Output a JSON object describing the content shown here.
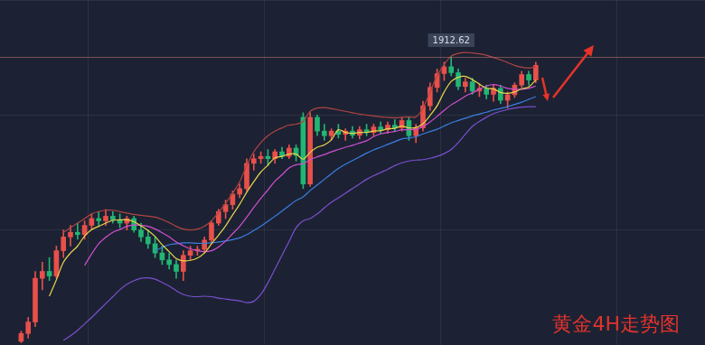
{
  "chart_data": {
    "type": "candlestick",
    "title": "黄金4H走势图",
    "x": [
      3,
      4,
      5,
      6,
      7,
      8,
      9,
      10,
      11,
      12,
      13,
      14,
      15,
      16,
      17,
      18,
      19,
      20,
      21,
      22,
      23,
      24,
      25,
      26,
      27,
      28,
      29,
      30,
      31,
      32,
      33,
      34,
      35,
      36,
      37,
      38,
      39,
      40,
      41,
      42,
      43,
      44,
      45,
      46,
      47,
      48,
      49,
      50,
      51,
      52,
      53,
      54,
      55,
      56,
      57,
      58,
      59,
      60,
      61,
      62,
      63,
      64,
      65,
      66,
      67,
      68,
      69,
      70,
      71,
      72,
      73,
      74,
      75,
      76
    ],
    "xlim": [
      0,
      100
    ],
    "xticks": [
      0,
      25,
      50,
      75,
      100
    ],
    "ylim": [
      1850,
      1925
    ],
    "yticks": [
      1850,
      1875,
      1900,
      1925
    ],
    "grid": true,
    "tick_labels": false,
    "open": [
      1850.8,
      1852.5,
      1855,
      1864.5,
      1866,
      1865,
      1870.5,
      1873.5,
      1874.5,
      1874,
      1876,
      1877.5,
      1877,
      1878,
      1877.2,
      1876.5,
      1877.5,
      1875,
      1873.5,
      1872,
      1870,
      1868.5,
      1867.5,
      1866,
      1869.5,
      1870.5,
      1870.8,
      1872.8,
      1876.5,
      1879,
      1880.5,
      1882.8,
      1884,
      1889.5,
      1890.5,
      1891,
      1890.5,
      1892,
      1891,
      1892.8,
      1899.5,
      1885,
      1899.5,
      1896.5,
      1895.5,
      1896.5,
      1895.8,
      1896.5,
      1895.6,
      1896.8,
      1896.2,
      1897.4,
      1896.8,
      1897.8,
      1897.2,
      1898.8,
      1895.5,
      1897.2,
      1902,
      1906,
      1909,
      1910.5,
      1909.2,
      1906.2,
      1907.2,
      1905.2,
      1905.8,
      1904.5,
      1905.8,
      1903.2,
      1904.4,
      1906.5,
      1908.8,
      1907.6
    ],
    "high": [
      1853,
      1856,
      1866,
      1868,
      1869,
      1871.5,
      1875,
      1876,
      1876.5,
      1877,
      1878.5,
      1879,
      1879.5,
      1879,
      1878.5,
      1878,
      1878,
      1876.5,
      1875,
      1873.5,
      1871.5,
      1870,
      1868.5,
      1870.5,
      1871.5,
      1871.5,
      1873.5,
      1877,
      1879.5,
      1881.5,
      1883.5,
      1885,
      1890.5,
      1891.5,
      1892,
      1892.5,
      1892.5,
      1893,
      1893.5,
      1893.5,
      1900.5,
      1900.5,
      1900,
      1898,
      1897,
      1898,
      1897,
      1897.5,
      1897.5,
      1898,
      1898,
      1898.5,
      1898.5,
      1899,
      1899.5,
      1899.5,
      1898,
      1903,
      1907,
      1910,
      1911.5,
      1912.62,
      1910,
      1908,
      1908,
      1906.8,
      1906.5,
      1906.5,
      1906.5,
      1905,
      1907,
      1909.5,
      1909.5,
      1911.5
    ],
    "low": [
      1850.5,
      1851.5,
      1854,
      1862,
      1864,
      1864.5,
      1869,
      1871.5,
      1873,
      1873,
      1875,
      1876,
      1876,
      1876.5,
      1875.5,
      1875,
      1874.5,
      1872.5,
      1871,
      1869,
      1867.5,
      1866.5,
      1864.5,
      1864,
      1868.5,
      1869.5,
      1870,
      1872,
      1876,
      1877.5,
      1879.5,
      1882,
      1883.5,
      1888,
      1889.5,
      1889,
      1889.5,
      1890.5,
      1890.5,
      1890,
      1884,
      1884.5,
      1895.5,
      1894.5,
      1894.5,
      1895,
      1894.5,
      1895,
      1894.8,
      1895.5,
      1895.5,
      1896,
      1896,
      1896.5,
      1896.5,
      1894.5,
      1894,
      1896.5,
      1901,
      1905,
      1907.5,
      1908.5,
      1905.5,
      1905,
      1904.5,
      1904,
      1903.5,
      1903,
      1902.5,
      1901.5,
      1903.8,
      1906,
      1906.5,
      1907
    ],
    "close": [
      1852.5,
      1855,
      1864.5,
      1866,
      1865,
      1870.5,
      1873.5,
      1874.5,
      1874,
      1876,
      1877.5,
      1877,
      1878,
      1877.2,
      1876.5,
      1877.5,
      1875,
      1873.5,
      1872,
      1870,
      1868.5,
      1867.5,
      1866,
      1869.5,
      1870.5,
      1870.8,
      1872.8,
      1876.5,
      1879,
      1880.5,
      1882.8,
      1884,
      1889.5,
      1890.5,
      1891,
      1890.5,
      1892,
      1891,
      1892.8,
      1891.2,
      1885,
      1899.5,
      1896.5,
      1895.5,
      1896.5,
      1895.8,
      1896.5,
      1895.6,
      1896.8,
      1896.2,
      1897.4,
      1896.8,
      1897.8,
      1897.2,
      1898.8,
      1895.5,
      1897.2,
      1902,
      1906,
      1909,
      1910.5,
      1909.2,
      1906.2,
      1907.2,
      1905.2,
      1905.8,
      1904.5,
      1905.8,
      1903.2,
      1904.4,
      1906.5,
      1908.8,
      1907.6,
      1910.8
    ],
    "colors": [
      "#e8504a",
      "#e8504a",
      "#e8504a",
      "#e8504a",
      "#22b573",
      "#e8504a",
      "#e8504a",
      "#e8504a",
      "#22b573",
      "#e8504a",
      "#e8504a",
      "#22b573",
      "#e8504a",
      "#22b573",
      "#22b573",
      "#e8504a",
      "#22b573",
      "#22b573",
      "#22b573",
      "#22b573",
      "#22b573",
      "#22b573",
      "#22b573",
      "#e8504a",
      "#e8504a",
      "#e8504a",
      "#e8504a",
      "#e8504a",
      "#e8504a",
      "#e8504a",
      "#e8504a",
      "#e8504a",
      "#e8504a",
      "#e8504a",
      "#e8504a",
      "#22b573",
      "#e8504a",
      "#22b573",
      "#e8504a",
      "#22b573",
      "#22b573",
      "#e8504a",
      "#22b573",
      "#22b573",
      "#e8504a",
      "#22b573",
      "#e8504a",
      "#22b573",
      "#e8504a",
      "#22b573",
      "#e8504a",
      "#22b573",
      "#e8504a",
      "#22b573",
      "#e8504a",
      "#22b573",
      "#e8504a",
      "#e8504a",
      "#e8504a",
      "#e8504a",
      "#e8504a",
      "#22b573",
      "#22b573",
      "#e8504a",
      "#22b573",
      "#e8504a",
      "#22b573",
      "#e8504a",
      "#22b573",
      "#e8504a",
      "#e8504a",
      "#e8504a",
      "#22b573",
      "#e8504a"
    ],
    "series": [
      {
        "type": "line",
        "color": "#b04444",
        "values": [
          null,
          null,
          null,
          null,
          null,
          null,
          1874.5,
          1875.5,
          1876.5,
          1877.5,
          1878.5,
          1879.0,
          1879.3,
          1879.3,
          1879.0,
          1878.7,
          1878.4,
          1878.2,
          1878.0,
          1877.8,
          1877.3,
          1876.6,
          1875.8,
          1875.2,
          1875.0,
          1875.2,
          1875.8,
          1877.0,
          1878.8,
          1880.8,
          1883.0,
          1885.5,
          1889.0,
          1892.0,
          1894.0,
          1895.5,
          1896.5,
          1897.2,
          1897.8,
          1898.0,
          1898.6,
          1900.8,
          1901.5,
          1901.6,
          1901.4,
          1901.1,
          1900.8,
          1900.5,
          1900.2,
          1900.0,
          1899.8,
          1899.6,
          1899.5,
          1899.4,
          1899.5,
          1899.6,
          1899.6,
          1901.5,
          1905.0,
          1908.5,
          1911.0,
          1912.8,
          1913.4,
          1913.6,
          1913.5,
          1913.3,
          1913.0,
          1912.5,
          1912.0,
          1911.4,
          1910.8,
          1910.4,
          1910.2,
          1910.5
        ]
      },
      {
        "type": "line",
        "color": "#7b4fd0",
        "values": [
          null,
          null,
          null,
          null,
          null,
          null,
          1851.0,
          1852.0,
          1853.2,
          1854.6,
          1856.0,
          1857.5,
          1859.0,
          1860.5,
          1862.0,
          1863.2,
          1864.0,
          1864.5,
          1864.6,
          1864.3,
          1863.6,
          1862.8,
          1861.8,
          1861.0,
          1860.6,
          1860.5,
          1860.6,
          1860.5,
          1860.2,
          1860.0,
          1859.8,
          1859.6,
          1859.2,
          1859.5,
          1861.0,
          1863.5,
          1866.5,
          1869.5,
          1872.5,
          1875.5,
          1877.0,
          1877.5,
          1878.5,
          1879.8,
          1881.0,
          1882.0,
          1883.0,
          1884.0,
          1885.0,
          1886.0,
          1886.8,
          1887.5,
          1888.2,
          1889.0,
          1889.6,
          1890.0,
          1890.2,
          1890.3,
          1890.6,
          1891.0,
          1891.6,
          1892.5,
          1894.0,
          1895.8,
          1897.5,
          1898.6,
          1899.5,
          1900.3,
          1900.8,
          1901.2,
          1901.5,
          1901.7,
          1901.8,
          1901.8
        ]
      },
      {
        "type": "line",
        "color": "#e8d44d",
        "values": [
          null,
          null,
          null,
          null,
          1860.6,
          1864.2,
          1868,
          1870,
          1871.5,
          1873.7,
          1875.1,
          1875.8,
          1876.5,
          1877.1,
          1877.2,
          1877.2,
          1876.8,
          1875.9,
          1874.9,
          1873.6,
          1871.8,
          1870.3,
          1868.8,
          1868.3,
          1868.4,
          1868.9,
          1870,
          1872,
          1873.9,
          1875.9,
          1878.3,
          1880.6,
          1883.2,
          1885.5,
          1887.6,
          1889.1,
          1890.7,
          1891,
          1891.5,
          1891.5,
          1890.4,
          1891.9,
          1893,
          1893.5,
          1894.6,
          1896.8,
          1896.2,
          1896,
          1896.2,
          1896.2,
          1896.5,
          1896.6,
          1897,
          1897.1,
          1897.6,
          1897.2,
          1897.3,
          1898.1,
          1899.9,
          1902,
          1905,
          1907.3,
          1908.2,
          1908.4,
          1907.7,
          1906.7,
          1905.8,
          1905.7,
          1904.9,
          1904.7,
          1905,
          1905.7,
          1906.1,
          1907.6
        ]
      },
      {
        "type": "line",
        "color": "#d14fd1",
        "values": [
          null,
          null,
          null,
          null,
          null,
          null,
          null,
          null,
          null,
          1867.3,
          1869.8,
          1872,
          1873.4,
          1874.5,
          1875.1,
          1875.8,
          1876.1,
          1876.0,
          1875.8,
          1875.2,
          1874.4,
          1873.5,
          1872.4,
          1871.6,
          1870.9,
          1870.5,
          1870.3,
          1870.5,
          1871.3,
          1872.6,
          1874.2,
          1875.8,
          1877.8,
          1879.9,
          1881.9,
          1883.7,
          1885.6,
          1887.0,
          1888.5,
          1889.2,
          1889.4,
          1890.3,
          1890.9,
          1891.4,
          1892,
          1892.5,
          1893,
          1893.4,
          1893.9,
          1894.4,
          1895.3,
          1895.9,
          1896.2,
          1896.4,
          1896.8,
          1896.8,
          1896.9,
          1897.5,
          1898.5,
          1899.7,
          1901,
          1902.2,
          1903.1,
          1904.1,
          1904.8,
          1905.6,
          1906.3,
          1906.6,
          1906.3,
          1905.8,
          1905.6,
          1905.6,
          1905.8,
          1906.3
        ]
      },
      {
        "type": "line",
        "color": "#3b7de0",
        "values": [
          null,
          null,
          null,
          null,
          null,
          null,
          null,
          null,
          null,
          null,
          null,
          null,
          null,
          null,
          null,
          null,
          null,
          null,
          null,
          1870.5,
          1871.2,
          1871.8,
          1872.0,
          1872.2,
          1872.2,
          1872.1,
          1872.1,
          1872.2,
          1872.4,
          1872.6,
          1872.9,
          1873.3,
          1874.0,
          1874.9,
          1875.8,
          1876.9,
          1878.0,
          1879.1,
          1880.3,
          1881.4,
          1882.2,
          1883.6,
          1884.8,
          1886.0,
          1887.2,
          1888.4,
          1889.3,
          1890.1,
          1890.9,
          1891.7,
          1892.4,
          1893.0,
          1893.6,
          1894.2,
          1894.8,
          1895.0,
          1895.3,
          1895.9,
          1896.4,
          1896.9,
          1897.6,
          1898.3,
          1898.8,
          1899.3,
          1899.8,
          1900.2,
          1900.6,
          1901.1,
          1901.4,
          1901.8,
          1902.3,
          1902.8,
          1903.4,
          1904.0
        ]
      }
    ],
    "annotations": [
      {
        "text": "1912.62",
        "x": 64,
        "y": 1912.62
      }
    ]
  }
}
